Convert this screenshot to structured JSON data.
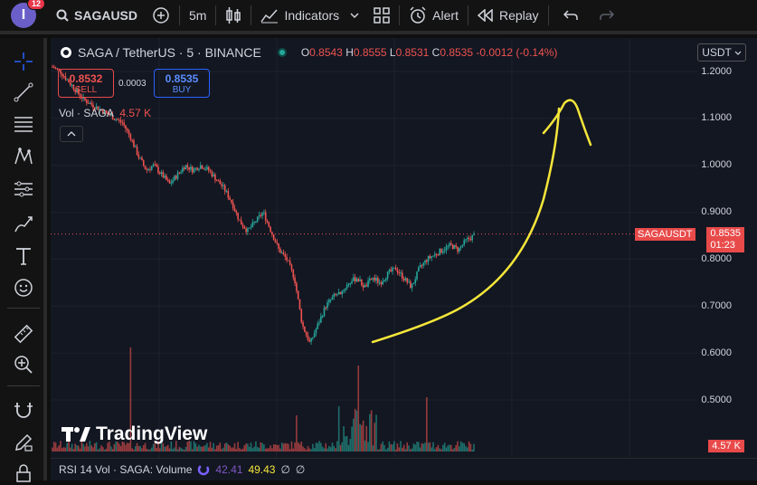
{
  "topbar": {
    "avatar_letter": "I",
    "notif_count": "12",
    "symbol": "SAGAUSD",
    "interval": "5m",
    "indicators": "Indicators",
    "alert": "Alert",
    "replay": "Replay"
  },
  "legend": {
    "pair": "SAGA / TetherUS · 5 · BINANCE",
    "o_label": "O",
    "o": "0.8543",
    "h_label": "H",
    "h": "0.8555",
    "l_label": "L",
    "l": "0.8531",
    "c_label": "C",
    "c": "0.8535",
    "change": "-0.0012 (-0.14%)"
  },
  "trade": {
    "sell_price": "0.8532",
    "sell_label": "SELL",
    "buy_price": "0.8535",
    "buy_label": "BUY",
    "spread": "0.0003"
  },
  "volume_legend": {
    "label": "Vol · SAGA",
    "value": "4.57 K"
  },
  "currency": "USDT",
  "price_axis": [
    "1.2000",
    "1.1000",
    "1.0000",
    "0.9000",
    "0.8000",
    "0.7000",
    "0.6000",
    "0.5000"
  ],
  "last_price": {
    "symbol": "SAGAUSDT",
    "price": "0.8535",
    "countdown": "01:23"
  },
  "volume_tag": "4.57 K",
  "brand": "TradingView",
  "rsi": {
    "label": "RSI 14 Vol · SAGA: Volume",
    "v1": "42.41",
    "v2": "49.43",
    "empty1": "∅",
    "empty2": "∅"
  },
  "chart_data": {
    "type": "line",
    "series": [
      {
        "values": [
          1.21,
          1.2,
          1.18,
          1.16,
          1.14,
          1.13,
          1.12,
          1.11,
          1.1,
          1.09,
          1.06,
          1.02,
          0.99,
          1.0,
          0.98,
          0.96,
          0.98,
          1.0,
          0.99,
          1.0,
          0.99,
          0.97,
          0.95,
          0.92,
          0.88,
          0.86,
          0.88,
          0.9,
          0.86,
          0.82,
          0.8,
          0.76,
          0.66,
          0.62,
          0.66,
          0.7,
          0.72,
          0.73,
          0.75,
          0.76,
          0.74,
          0.76,
          0.75,
          0.77,
          0.78,
          0.76,
          0.74,
          0.78,
          0.8,
          0.81,
          0.82,
          0.83,
          0.82,
          0.84,
          0.85
        ]
      }
    ],
    "ylim": [
      0.45,
      1.22
    ]
  },
  "colors": {
    "up": "#26a69a",
    "down": "#ef5350",
    "annotation": "#f5e63a",
    "accent": "#2962ff"
  }
}
